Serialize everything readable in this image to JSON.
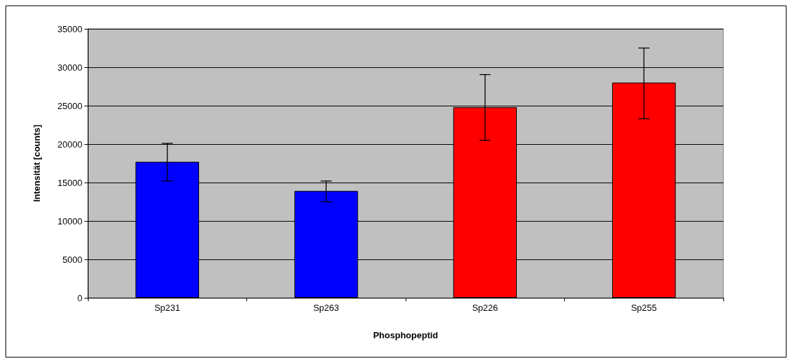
{
  "chart_data": {
    "type": "bar",
    "xlabel": "Phosphopeptid",
    "ylabel": "Intensität [counts]",
    "categories": [
      "Sp231",
      "Sp263",
      "Sp226",
      "Sp255"
    ],
    "values": [
      17700,
      13900,
      24800,
      28000
    ],
    "colors": [
      "#0000ff",
      "#0000ff",
      "#ff0000",
      "#ff0000"
    ],
    "errors": [
      [
        15200,
        20100
      ],
      [
        12500,
        15200
      ],
      [
        20500,
        29050
      ],
      [
        23300,
        32500
      ]
    ],
    "ylim": [
      0,
      35000
    ],
    "yticks": [
      0,
      5000,
      10000,
      15000,
      20000,
      25000,
      30000,
      35000
    ],
    "grid": "y"
  }
}
